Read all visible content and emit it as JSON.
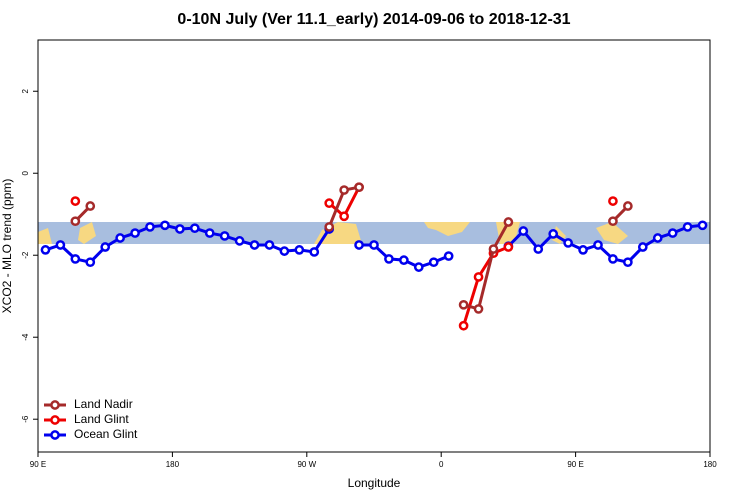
{
  "chart_data": {
    "type": "line",
    "title": "0-10N July (Ver 11.1_early)   2014-09-06 to 2018-12-31",
    "x_label": "Longitude",
    "y_label": "XCO2 - MLO trend (ppm)",
    "x": [
      95,
      105,
      115,
      125,
      135,
      145,
      155,
      165,
      175,
      185,
      195,
      205,
      215,
      225,
      235,
      245,
      255,
      265,
      275,
      285,
      295,
      305,
      315,
      325,
      335,
      345,
      355,
      365,
      375,
      385,
      395,
      405,
      415,
      425,
      435,
      445,
      455,
      465,
      475,
      485,
      495,
      505,
      515,
      525,
      535
    ],
    "series": [
      {
        "name": "Ocean Glint",
        "color": "#0000ee",
        "values": [
          -1.87,
          -1.75,
          -2.09,
          -2.17,
          -1.8,
          -1.58,
          -1.46,
          -1.31,
          -1.27,
          -1.36,
          -1.34,
          -1.46,
          -1.53,
          -1.65,
          -1.75,
          -1.75,
          -1.9,
          -1.87,
          -1.92,
          -1.36,
          null,
          -1.75,
          -1.75,
          -2.09,
          -2.12,
          -2.29,
          -2.17,
          -2.02,
          null,
          null,
          null,
          -1.78,
          -1.41,
          -1.85,
          -1.48,
          -1.7,
          -1.87,
          -1.75,
          -2.09,
          -2.17,
          -1.8,
          -1.58,
          -1.46,
          -1.31,
          -1.27
        ]
      },
      {
        "name": "Land Glint",
        "color": "#ee0000",
        "values": [
          null,
          null,
          -0.68,
          null,
          null,
          null,
          null,
          null,
          null,
          null,
          null,
          null,
          null,
          null,
          null,
          null,
          null,
          null,
          null,
          -0.73,
          -1.05,
          -0.34,
          null,
          null,
          null,
          null,
          null,
          null,
          -3.72,
          -2.53,
          -1.95,
          -1.8,
          null,
          null,
          null,
          null,
          null,
          null,
          -0.68,
          null,
          null,
          null,
          null,
          null,
          null
        ]
      },
      {
        "name": "Land Nadir",
        "color": "#a52a2a",
        "values": [
          null,
          null,
          -1.17,
          -0.8,
          null,
          null,
          null,
          null,
          null,
          null,
          null,
          null,
          null,
          null,
          null,
          null,
          null,
          null,
          null,
          -1.31,
          -0.41,
          -0.34,
          null,
          null,
          null,
          null,
          null,
          null,
          -3.21,
          -3.31,
          -1.85,
          -1.19,
          null,
          null,
          null,
          null,
          null,
          null,
          -1.17,
          -0.8,
          null,
          null,
          null,
          null,
          null
        ]
      }
    ],
    "xlim": [
      90,
      540
    ],
    "xticks": [
      {
        "value": 90,
        "label": "90 E"
      },
      180,
      {
        "value": 270,
        "label": "90 W"
      },
      {
        "value": 360,
        "label": "0"
      },
      {
        "value": 450,
        "label": "90 E"
      },
      {
        "value": 540,
        "label": "180"
      }
    ],
    "ylim": [
      -6.8,
      3.25
    ],
    "yticks": [
      -6,
      -4,
      -2,
      0,
      2
    ],
    "legend": "bottom-left"
  }
}
